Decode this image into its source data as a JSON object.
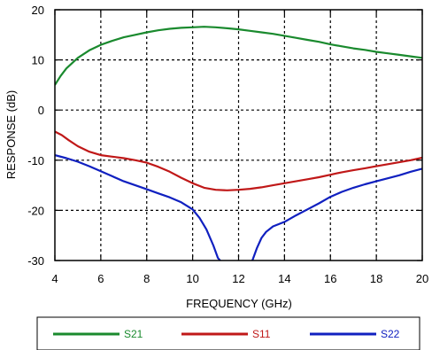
{
  "chart_data": {
    "type": "line",
    "xlabel": "FREQUENCY (GHz)",
    "ylabel": "RESPONSE (dB)",
    "xlim": [
      4,
      20
    ],
    "ylim": [
      -30,
      20
    ],
    "x_ticks": [
      4,
      6,
      8,
      10,
      12,
      14,
      16,
      18,
      20
    ],
    "y_ticks": [
      -30,
      -20,
      -10,
      0,
      10,
      20
    ],
    "grid": true,
    "grid_style": "dotted",
    "legend_position": "bottom",
    "series": [
      {
        "name": "S21",
        "color": "#1a8a2e",
        "points": [
          [
            4,
            5
          ],
          [
            4.25,
            6.8
          ],
          [
            4.5,
            8.3
          ],
          [
            5,
            10.4
          ],
          [
            5.5,
            11.9
          ],
          [
            6,
            13
          ],
          [
            6.5,
            13.8
          ],
          [
            7,
            14.5
          ],
          [
            7.5,
            15
          ],
          [
            8,
            15.5
          ],
          [
            8.5,
            15.9
          ],
          [
            9,
            16.2
          ],
          [
            9.5,
            16.4
          ],
          [
            10,
            16.5
          ],
          [
            10.5,
            16.6
          ],
          [
            11,
            16.5
          ],
          [
            11.5,
            16.3
          ],
          [
            12,
            16.1
          ],
          [
            12.5,
            15.8
          ],
          [
            13,
            15.5
          ],
          [
            13.5,
            15.2
          ],
          [
            14,
            14.8
          ],
          [
            14.5,
            14.4
          ],
          [
            15,
            14
          ],
          [
            15.5,
            13.6
          ],
          [
            16,
            13.1
          ],
          [
            16.5,
            12.7
          ],
          [
            17,
            12.3
          ],
          [
            17.5,
            12
          ],
          [
            18,
            11.6
          ],
          [
            18.5,
            11.3
          ],
          [
            19,
            11
          ],
          [
            19.5,
            10.7
          ],
          [
            20,
            10.4
          ]
        ]
      },
      {
        "name": "S11",
        "color": "#c01818",
        "points": [
          [
            4,
            -4.3
          ],
          [
            4.3,
            -5
          ],
          [
            4.6,
            -6
          ],
          [
            5,
            -7.2
          ],
          [
            5.5,
            -8.3
          ],
          [
            6,
            -9
          ],
          [
            6.5,
            -9.3
          ],
          [
            7,
            -9.6
          ],
          [
            7.5,
            -10
          ],
          [
            8,
            -10.5
          ],
          [
            8.5,
            -11.3
          ],
          [
            9,
            -12.3
          ],
          [
            9.5,
            -13.5
          ],
          [
            10,
            -14.6
          ],
          [
            10.5,
            -15.5
          ],
          [
            11,
            -15.9
          ],
          [
            11.5,
            -16
          ],
          [
            12,
            -15.9
          ],
          [
            12.5,
            -15.7
          ],
          [
            13,
            -15.4
          ],
          [
            13.5,
            -15
          ],
          [
            14,
            -14.6
          ],
          [
            14.5,
            -14.2
          ],
          [
            15,
            -13.8
          ],
          [
            15.5,
            -13.4
          ],
          [
            16,
            -12.9
          ],
          [
            16.5,
            -12.4
          ],
          [
            17,
            -12
          ],
          [
            17.5,
            -11.6
          ],
          [
            18,
            -11.2
          ],
          [
            18.5,
            -10.8
          ],
          [
            19,
            -10.4
          ],
          [
            19.5,
            -10
          ],
          [
            20,
            -9.5
          ]
        ]
      },
      {
        "name": "S22",
        "color": "#1020c0",
        "points": [
          [
            4,
            -9
          ],
          [
            4.5,
            -9.6
          ],
          [
            5,
            -10.3
          ],
          [
            5.5,
            -11.2
          ],
          [
            6,
            -12.2
          ],
          [
            6.5,
            -13.2
          ],
          [
            7,
            -14.2
          ],
          [
            7.5,
            -15
          ],
          [
            8,
            -15.8
          ],
          [
            8.5,
            -16.6
          ],
          [
            9,
            -17.4
          ],
          [
            9.5,
            -18.4
          ],
          [
            10,
            -19.8
          ],
          [
            10.3,
            -21.5
          ],
          [
            10.6,
            -23.8
          ],
          [
            10.9,
            -27
          ],
          [
            11.1,
            -29.5
          ],
          [
            11.2,
            -30
          ]
        ],
        "points_right": [
          [
            12.6,
            -30
          ],
          [
            12.8,
            -27.5
          ],
          [
            13,
            -25.5
          ],
          [
            13.2,
            -24.3
          ],
          [
            13.5,
            -23.2
          ],
          [
            14,
            -22.3
          ],
          [
            14.5,
            -21
          ],
          [
            15,
            -19.8
          ],
          [
            15.5,
            -18.6
          ],
          [
            16,
            -17.3
          ],
          [
            16.5,
            -16.3
          ],
          [
            17,
            -15.5
          ],
          [
            17.5,
            -14.8
          ],
          [
            18,
            -14.2
          ],
          [
            18.5,
            -13.6
          ],
          [
            19,
            -13
          ],
          [
            19.5,
            -12.3
          ],
          [
            20,
            -11.7
          ]
        ]
      }
    ]
  }
}
